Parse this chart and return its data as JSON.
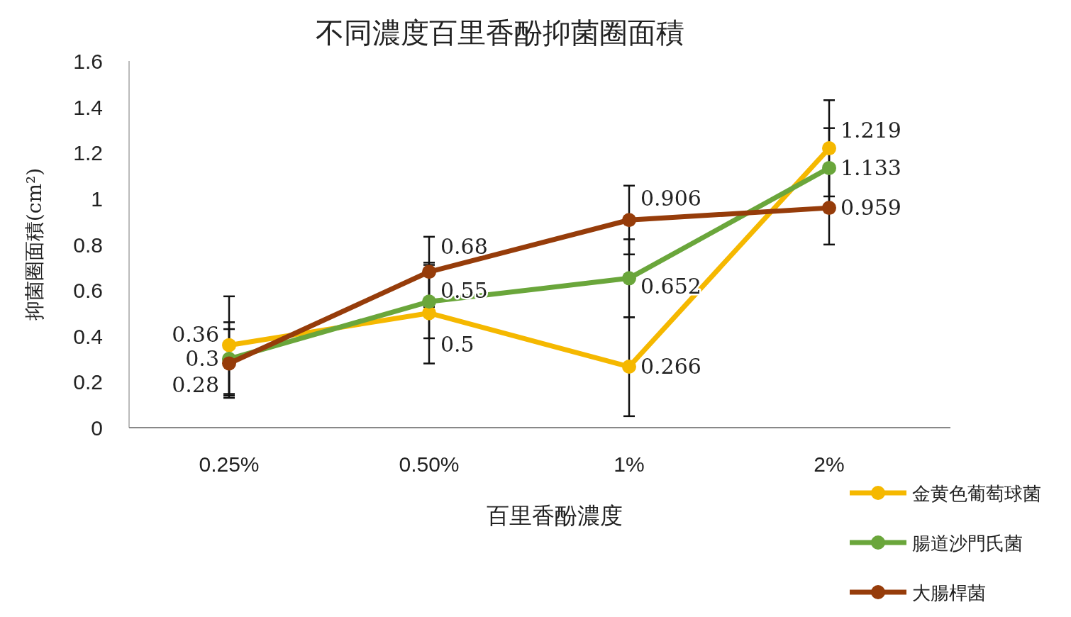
{
  "chart_data": {
    "type": "line",
    "title": "不同濃度百里香酚抑菌圈面積",
    "xlabel": "百里香酚濃度",
    "ylabel": "抑菌圈面積(cm²)",
    "categories": [
      "0.25%",
      "0.50%",
      "1%",
      "2%"
    ],
    "series": [
      {
        "name": "金黄色葡萄球菌",
        "color": "#f5b800",
        "values": [
          0.36,
          0.5,
          0.266,
          1.219
        ],
        "errors": [
          0.213,
          0.22,
          0.216,
          0.21
        ]
      },
      {
        "name": "腸道沙門氏菌",
        "color": "#6aa63b",
        "values": [
          0.3,
          0.55,
          0.652,
          1.133
        ],
        "errors": [
          0.16,
          0.16,
          0.17,
          0.174
        ]
      },
      {
        "name": "大腸桿菌",
        "color": "#963c0a",
        "values": [
          0.28,
          0.68,
          0.906,
          0.959
        ],
        "errors": [
          0.15,
          0.153,
          0.15,
          0.16
        ]
      }
    ],
    "ylim": [
      0,
      1.6
    ],
    "yticks": [
      0,
      0.2,
      0.4,
      0.6,
      0.8,
      1,
      1.2,
      1.4,
      1.6
    ],
    "data_labels": true,
    "grid": false,
    "legend": "bottom right",
    "marker": "circle",
    "line_style": "solid"
  }
}
